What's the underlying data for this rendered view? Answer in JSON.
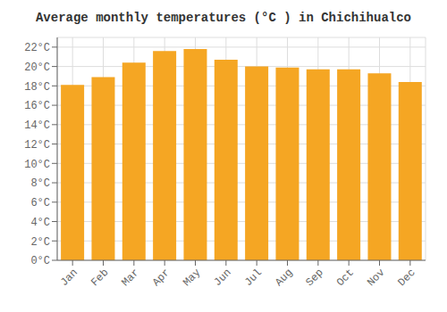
{
  "chart_data": {
    "type": "bar",
    "title": "Average monthly temperatures (°C ) in Chichihualco",
    "categories": [
      "Jan",
      "Feb",
      "Mar",
      "Apr",
      "May",
      "Jun",
      "Jul",
      "Aug",
      "Sep",
      "Oct",
      "Nov",
      "Dec"
    ],
    "values": [
      18.1,
      18.9,
      20.4,
      21.6,
      21.8,
      20.7,
      20.0,
      19.9,
      19.7,
      19.7,
      19.3,
      18.4
    ],
    "color": "#F5A623",
    "ylim": [
      0,
      23
    ],
    "yticks": [
      {
        "value": 0,
        "label": "0°C"
      },
      {
        "value": 2,
        "label": "2°C"
      },
      {
        "value": 4,
        "label": "4°C"
      },
      {
        "value": 6,
        "label": "6°C"
      },
      {
        "value": 8,
        "label": "8°C"
      },
      {
        "value": 10,
        "label": "10°C"
      },
      {
        "value": 12,
        "label": "12°C"
      },
      {
        "value": 14,
        "label": "14°C"
      },
      {
        "value": 16,
        "label": "16°C"
      },
      {
        "value": 18,
        "label": "18°C"
      },
      {
        "value": 20,
        "label": "20°C"
      },
      {
        "value": 22,
        "label": "22°C"
      }
    ],
    "grid": true
  }
}
